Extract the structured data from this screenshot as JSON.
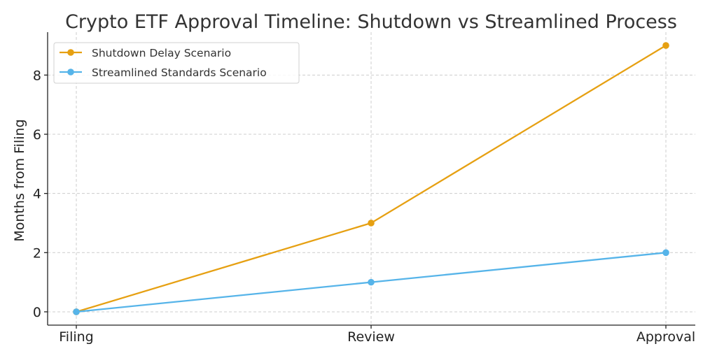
{
  "chart_data": {
    "type": "line",
    "title": "Crypto ETF Approval Timeline: Shutdown vs Streamlined Process",
    "xlabel": "",
    "ylabel": "Months from Filing",
    "categories": [
      "Filing",
      "Review",
      "Approval"
    ],
    "yticks": [
      0,
      2,
      4,
      6,
      8
    ],
    "ylim": [
      -0.45,
      9.45
    ],
    "grid": true,
    "legend_position": "top-left",
    "series": [
      {
        "name": "Shutdown Delay Scenario",
        "values": [
          0,
          3,
          9
        ],
        "color": "#E6A012"
      },
      {
        "name": "Streamlined Standards Scenario",
        "values": [
          0,
          1,
          2
        ],
        "color": "#56B4E9"
      }
    ]
  }
}
